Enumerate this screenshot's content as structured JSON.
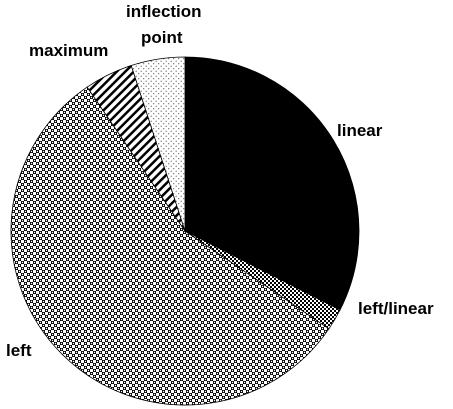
{
  "chart_data": {
    "type": "pie",
    "title": "",
    "start": "12 o'clock",
    "direction": "clockwise",
    "slices": [
      {
        "label": "linear",
        "value": 32.5,
        "fill": "solid black"
      },
      {
        "label": "left/linear",
        "value": 2.0,
        "fill": "fine checkered"
      },
      {
        "label": "left",
        "value": 56.0,
        "fill": "dotted checkered"
      },
      {
        "label": "maximum",
        "value": 4.5,
        "fill": "diagonal hatch"
      },
      {
        "label": "inflection point",
        "label_lines": [
          "inflection",
          "point"
        ],
        "value": 5.0,
        "fill": "light dots"
      }
    ],
    "legend": "none",
    "data_labels": "category names outside slices"
  }
}
